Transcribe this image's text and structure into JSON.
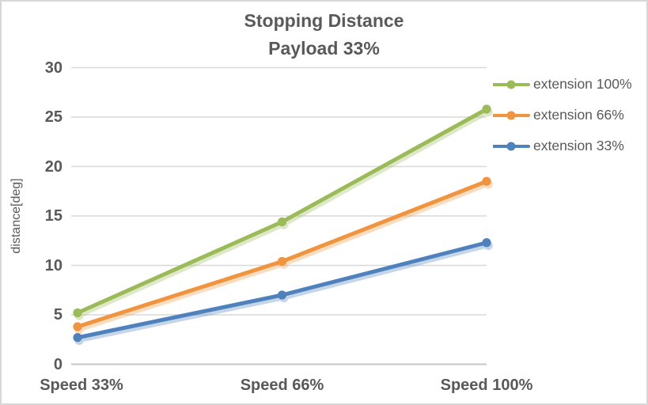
{
  "chart_data": {
    "type": "line",
    "title": "Stopping Distance",
    "subtitle": "Payload 33%",
    "categories": [
      "Speed 33%",
      "Speed 66%",
      "Speed 100%"
    ],
    "series": [
      {
        "name": "extension 100%",
        "color": "#9BBB59",
        "values": [
          5.2,
          14.4,
          25.8
        ]
      },
      {
        "name": "extension 66%",
        "color": "#F0943F",
        "values": [
          3.8,
          10.4,
          18.5
        ]
      },
      {
        "name": "extension 33%",
        "color": "#4F81BD",
        "values": [
          2.7,
          7.0,
          12.3
        ]
      }
    ],
    "xlabel": "",
    "ylabel": "distance[deg]",
    "ylim": [
      0,
      30
    ],
    "yticks": [
      0,
      5,
      10,
      15,
      20,
      25,
      30
    ],
    "grid": true,
    "legend_position": "right",
    "marker": "circle"
  },
  "colors": {
    "text": "#595959",
    "gridline": "#D9D9D9",
    "axis_line": "#C6C6C6",
    "border": "#D7D7D7",
    "background": "#FFFFFF"
  }
}
